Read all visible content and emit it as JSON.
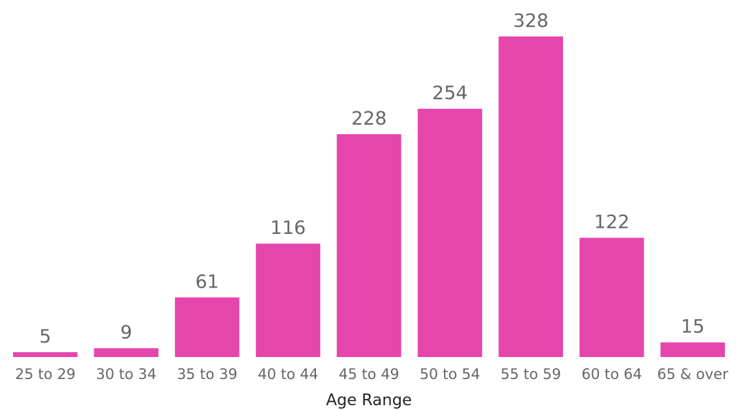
{
  "chart_data": {
    "type": "bar",
    "categories": [
      "25 to 29",
      "30 to 34",
      "35 to 39",
      "40 to 44",
      "45 to 49",
      "50 to 54",
      "55 to 59",
      "60 to 64",
      "65 & over"
    ],
    "values": [
      5,
      9,
      61,
      116,
      228,
      254,
      328,
      122,
      15
    ],
    "title": "",
    "xlabel": "Age Range",
    "ylabel": "",
    "ylim": [
      0,
      328
    ],
    "grid": false,
    "legend": "none",
    "bar_color": "#E645AB",
    "label_color": "#666666",
    "axis_title_color": "#252423"
  }
}
